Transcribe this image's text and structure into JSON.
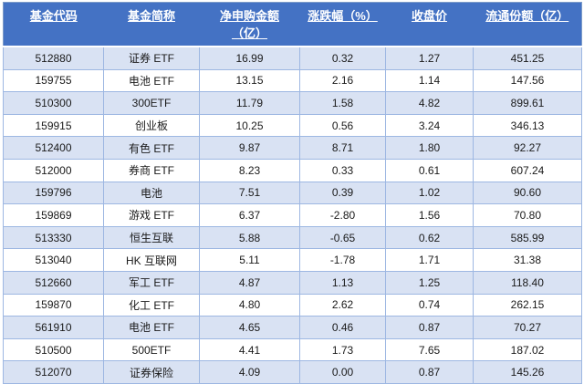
{
  "app": {
    "description_labels": {
      "unit_yi": "亿"
    }
  },
  "colors": {
    "header_bg": "#4472C4",
    "header_text": "#FFFFFF",
    "band_row_bg": "#D9E2F3",
    "plain_row_bg": "#FFFFFF",
    "grid_border": "#9DB7E2",
    "outer_border": "#7E9CC9",
    "cell_text": "#1A1A1A"
  },
  "table": {
    "columns": [
      {
        "key": "code",
        "label": "基金代码"
      },
      {
        "key": "name",
        "label": "基金简称"
      },
      {
        "key": "net",
        "label": "净申购金额\n（亿）"
      },
      {
        "key": "change",
        "label": "涨跌幅（%）"
      },
      {
        "key": "close",
        "label": "收盘价"
      },
      {
        "key": "shares",
        "label": "流通份额（亿）"
      }
    ],
    "rows": [
      [
        "512880",
        "证券 ETF",
        "16.99",
        "0.32",
        "1.27",
        "451.25"
      ],
      [
        "159755",
        "电池 ETF",
        "13.15",
        "2.16",
        "1.14",
        "147.56"
      ],
      [
        "510300",
        "300ETF",
        "11.79",
        "1.58",
        "4.82",
        "899.61"
      ],
      [
        "159915",
        "创业板",
        "10.25",
        "0.56",
        "3.24",
        "346.13"
      ],
      [
        "512400",
        "有色 ETF",
        "9.87",
        "8.71",
        "1.80",
        "92.27"
      ],
      [
        "512000",
        "券商 ETF",
        "8.23",
        "0.33",
        "0.61",
        "607.24"
      ],
      [
        "159796",
        "电池",
        "7.51",
        "0.39",
        "1.02",
        "90.60"
      ],
      [
        "159869",
        "游戏 ETF",
        "6.37",
        "-2.80",
        "1.56",
        "70.80"
      ],
      [
        "513330",
        "恒生互联",
        "5.88",
        "-0.65",
        "0.62",
        "585.99"
      ],
      [
        "513040",
        "HK 互联网",
        "5.11",
        "-1.78",
        "1.71",
        "31.38"
      ],
      [
        "512660",
        "军工 ETF",
        "4.87",
        "1.13",
        "1.25",
        "118.40"
      ],
      [
        "159870",
        "化工 ETF",
        "4.80",
        "2.62",
        "0.74",
        "262.15"
      ],
      [
        "561910",
        "电池 ETF",
        "4.65",
        "0.46",
        "0.87",
        "70.27"
      ],
      [
        "510500",
        "500ETF",
        "4.41",
        "1.73",
        "7.65",
        "187.02"
      ],
      [
        "512070",
        "证券保险",
        "4.09",
        "0.00",
        "0.87",
        "145.26"
      ]
    ]
  },
  "chart_data": {
    "type": "table",
    "title": "",
    "columns": [
      "基金代码",
      "基金简称",
      "净申购金额（亿）",
      "涨跌幅（%）",
      "收盘价",
      "流通份额（亿）"
    ],
    "rows": [
      [
        "512880",
        "证券 ETF",
        16.99,
        0.32,
        1.27,
        451.25
      ],
      [
        "159755",
        "电池 ETF",
        13.15,
        2.16,
        1.14,
        147.56
      ],
      [
        "510300",
        "300ETF",
        11.79,
        1.58,
        4.82,
        899.61
      ],
      [
        "159915",
        "创业板",
        10.25,
        0.56,
        3.24,
        346.13
      ],
      [
        "512400",
        "有色 ETF",
        9.87,
        8.71,
        1.8,
        92.27
      ],
      [
        "512000",
        "券商 ETF",
        8.23,
        0.33,
        0.61,
        607.24
      ],
      [
        "159796",
        "电池",
        7.51,
        0.39,
        1.02,
        90.6
      ],
      [
        "159869",
        "游戏 ETF",
        6.37,
        -2.8,
        1.56,
        70.8
      ],
      [
        "513330",
        "恒生互联",
        5.88,
        -0.65,
        0.62,
        585.99
      ],
      [
        "513040",
        "HK 互联网",
        5.11,
        -1.78,
        1.71,
        31.38
      ],
      [
        "512660",
        "军工 ETF",
        4.87,
        1.13,
        1.25,
        118.4
      ],
      [
        "159870",
        "化工 ETF",
        4.8,
        2.62,
        0.74,
        262.15
      ],
      [
        "561910",
        "电池 ETF",
        4.65,
        0.46,
        0.87,
        70.27
      ],
      [
        "510500",
        "500ETF",
        4.41,
        1.73,
        7.65,
        187.02
      ],
      [
        "512070",
        "证券保险",
        4.09,
        0.0,
        0.87,
        145.26
      ]
    ]
  }
}
